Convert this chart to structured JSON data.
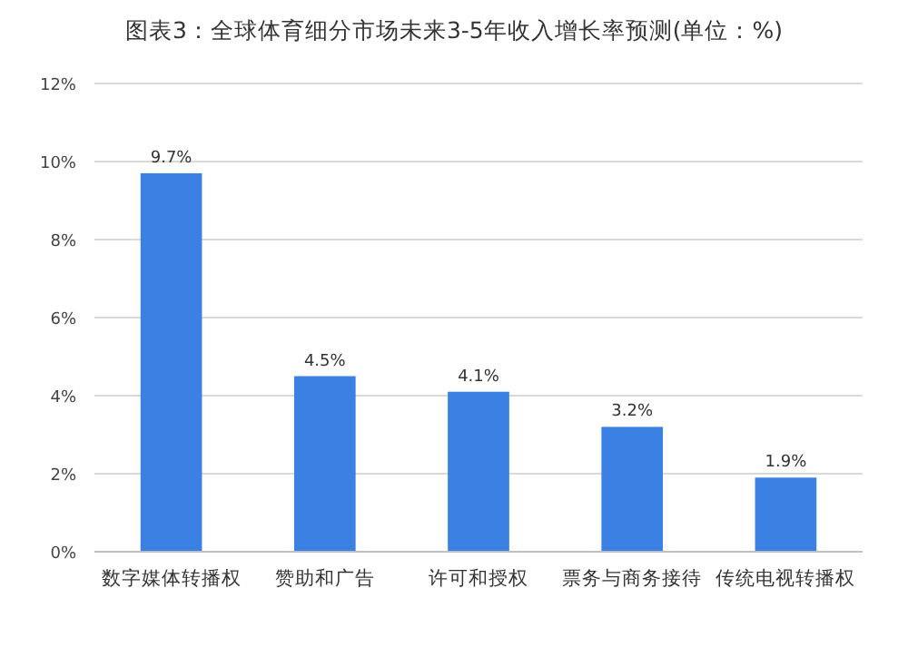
{
  "chart_data": {
    "type": "bar",
    "title": "图表3：全球体育细分市场未来3-5年收入增长率预测(单位：%)",
    "categories": [
      "数字媒体转播权",
      "赞助和广告",
      "许可和授权",
      "票务与商务接待",
      "传统电视转播权"
    ],
    "values": [
      9.7,
      4.5,
      4.1,
      3.2,
      1.9
    ],
    "value_labels": [
      "9.7%",
      "4.5%",
      "4.1%",
      "3.2%",
      "1.9%"
    ],
    "color": "#3b80e3",
    "ylim": [
      0,
      12
    ],
    "yticks": [
      {
        "value": 0,
        "label": "0%"
      },
      {
        "value": 2,
        "label": "2%"
      },
      {
        "value": 4,
        "label": "4%"
      },
      {
        "value": 6,
        "label": "6%"
      },
      {
        "value": 8,
        "label": "8%"
      },
      {
        "value": 10,
        "label": "10%"
      },
      {
        "value": 12,
        "label": "12%"
      }
    ],
    "grid": "y"
  }
}
